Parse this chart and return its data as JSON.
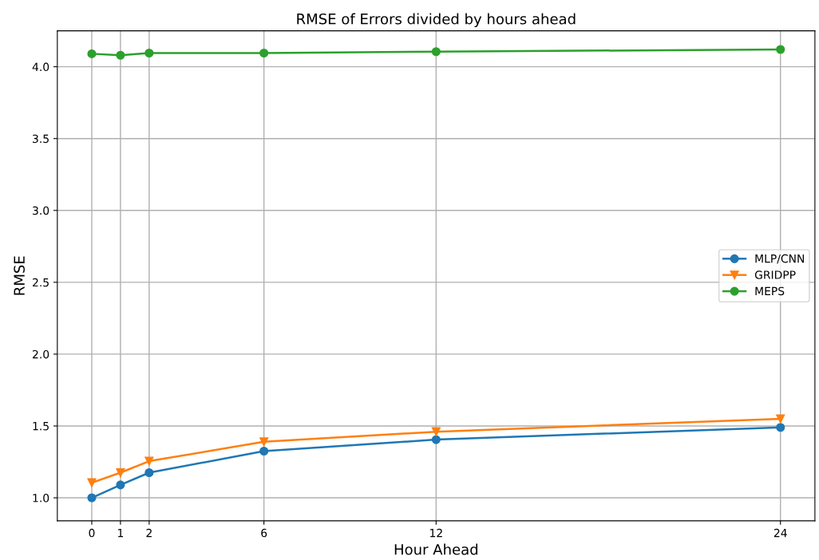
{
  "chart_data": {
    "type": "line",
    "title": "RMSE of Errors divided by hours ahead",
    "xlabel": "Hour Ahead",
    "ylabel": "RMSE",
    "x": [
      0,
      1,
      2,
      6,
      12,
      24
    ],
    "series": [
      {
        "name": "MLP/CNN",
        "color": "#1f77b4",
        "marker": "circle",
        "values": [
          1.0,
          1.09,
          1.175,
          1.325,
          1.405,
          1.49
        ]
      },
      {
        "name": "GRIDPP",
        "color": "#ff7f0e",
        "marker": "triangle",
        "values": [
          1.105,
          1.175,
          1.255,
          1.39,
          1.46,
          1.55
        ]
      },
      {
        "name": "MEPS",
        "color": "#2ca02c",
        "marker": "circle",
        "values": [
          4.09,
          4.08,
          4.095,
          4.095,
          4.105,
          4.12
        ]
      }
    ],
    "xlim": [
      -1.2,
      25.2
    ],
    "ylim": [
      0.84,
      4.25
    ],
    "xticks": [
      0,
      1,
      2,
      6,
      12,
      24
    ],
    "yticks": [
      {
        "value": 1.0,
        "label": "1.0"
      },
      {
        "value": 1.5,
        "label": "1.5"
      },
      {
        "value": 2.0,
        "label": "2.0"
      },
      {
        "value": 2.5,
        "label": "2.5"
      },
      {
        "value": 3.0,
        "label": "3.0"
      },
      {
        "value": 3.5,
        "label": "3.5"
      },
      {
        "value": 4.0,
        "label": "4.0"
      }
    ],
    "grid": true,
    "legend": "right"
  }
}
